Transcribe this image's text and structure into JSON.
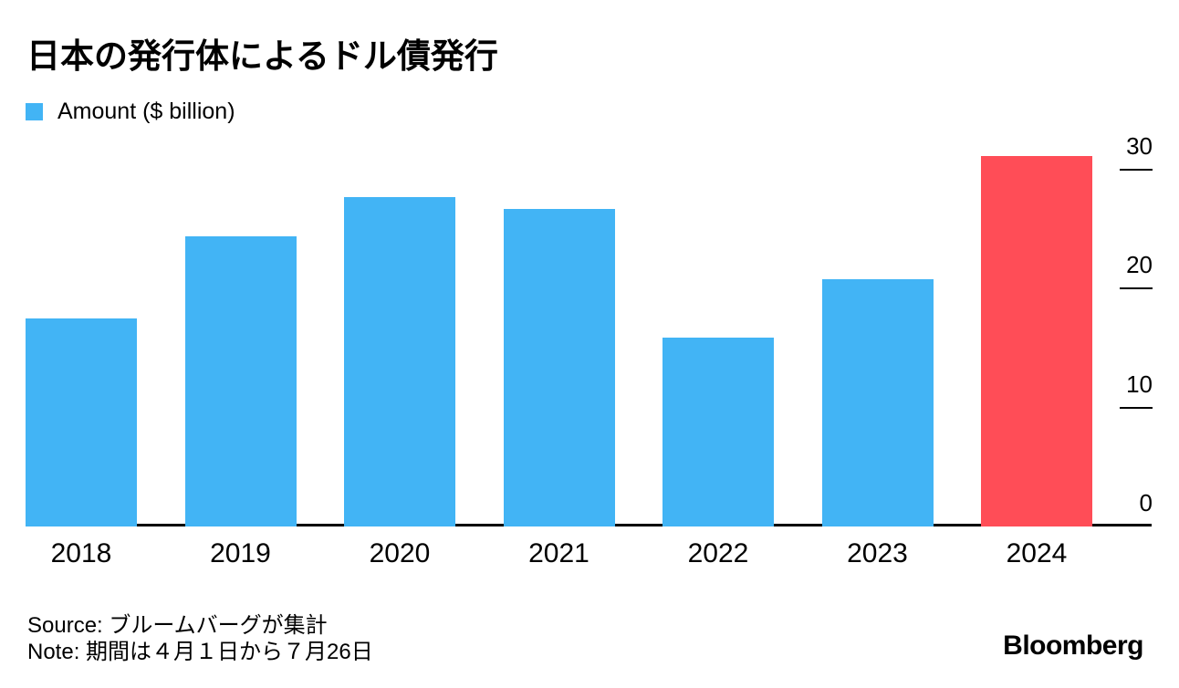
{
  "title": "日本の発行体によるドル債発行",
  "legend": {
    "label": "Amount ($ billion)",
    "swatch_color": "#42b4f5"
  },
  "chart_data": {
    "type": "bar",
    "title": "日本の発行体によるドル債発行",
    "categories": [
      "2018",
      "2019",
      "2020",
      "2021",
      "2022",
      "2023",
      "2024"
    ],
    "series": [
      {
        "name": "Amount ($ billion)",
        "values": [
          17.5,
          24.4,
          27.7,
          26.7,
          15.9,
          20.8,
          31.1
        ]
      }
    ],
    "highlight_index": 6,
    "bar_color": "#42b4f5",
    "highlight_color": "#ff4d57",
    "xlabel": "",
    "ylabel": "Amount ($ billion)",
    "ylim": [
      0,
      32
    ],
    "yticks": [
      0,
      10,
      20,
      30
    ],
    "yaxis_position": "right",
    "grid": false,
    "legend_position": "top-left"
  },
  "footer": {
    "source": "Source: ブルームバーグが集計",
    "note": "Note: 期間は４月１日から７月26日",
    "logo": "Bloomberg"
  }
}
